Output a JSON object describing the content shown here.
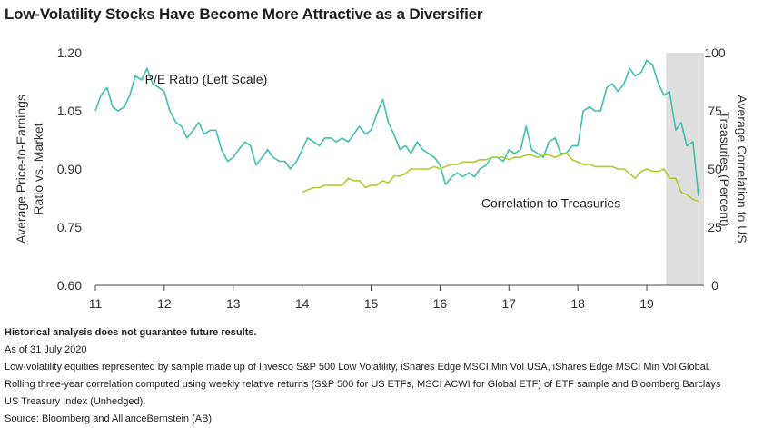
{
  "title": "Low-Volatility Stocks Have Become More Attractive as a Diversifier",
  "chart_data": {
    "type": "line",
    "xlabel": "",
    "ylabel_left": "Average Price-to-Earnings Ratio vs. Market",
    "ylabel_right": "Average Correlation to US Treasuries (Percent)",
    "x_ticks": [
      "11",
      "12",
      "13",
      "14",
      "15",
      "16",
      "17",
      "18",
      "19"
    ],
    "x_tick_values": [
      2011,
      2012,
      2013,
      2014,
      2015,
      2016,
      2017,
      2018,
      2019
    ],
    "xlim": [
      2011,
      2019.83
    ],
    "y_left_ticks": [
      "0.60",
      "0.75",
      "0.90",
      "1.05",
      "1.20"
    ],
    "ylim_left": [
      0.6,
      1.2
    ],
    "y_right_ticks": [
      "0",
      "25",
      "50",
      "75",
      "100"
    ],
    "ylim_right": [
      0,
      100
    ],
    "shaded_region": [
      2019.28,
      2019.83
    ],
    "grid": false,
    "series": [
      {
        "name": "P/E Ratio (Left Scale)",
        "axis": "left",
        "color": "#3fbfae",
        "x": [
          2011.0,
          2011.08,
          2011.17,
          2011.25,
          2011.33,
          2011.42,
          2011.5,
          2011.58,
          2011.67,
          2011.75,
          2011.83,
          2011.92,
          2012.0,
          2012.08,
          2012.17,
          2012.25,
          2012.33,
          2012.42,
          2012.5,
          2012.58,
          2012.67,
          2012.75,
          2012.83,
          2012.92,
          2013.0,
          2013.08,
          2013.17,
          2013.25,
          2013.33,
          2013.42,
          2013.5,
          2013.58,
          2013.67,
          2013.75,
          2013.83,
          2013.92,
          2014.0,
          2014.08,
          2014.17,
          2014.25,
          2014.33,
          2014.42,
          2014.5,
          2014.58,
          2014.67,
          2014.75,
          2014.83,
          2014.92,
          2015.0,
          2015.08,
          2015.17,
          2015.25,
          2015.33,
          2015.42,
          2015.5,
          2015.58,
          2015.67,
          2015.75,
          2015.83,
          2015.92,
          2016.0,
          2016.08,
          2016.17,
          2016.25,
          2016.33,
          2016.42,
          2016.5,
          2016.58,
          2016.67,
          2016.75,
          2016.83,
          2016.92,
          2017.0,
          2017.08,
          2017.17,
          2017.25,
          2017.33,
          2017.42,
          2017.5,
          2017.58,
          2017.67,
          2017.75,
          2017.83,
          2017.92,
          2018.0,
          2018.08,
          2018.17,
          2018.25,
          2018.33,
          2018.42,
          2018.5,
          2018.58,
          2018.67,
          2018.75,
          2018.83,
          2018.92,
          2019.0,
          2019.08,
          2019.17,
          2019.25,
          2019.33,
          2019.42,
          2019.5,
          2019.58,
          2019.67,
          2019.75
        ],
        "y": [
          1.05,
          1.09,
          1.11,
          1.06,
          1.05,
          1.06,
          1.09,
          1.14,
          1.13,
          1.16,
          1.12,
          1.11,
          1.1,
          1.05,
          1.02,
          1.01,
          0.98,
          1.0,
          1.02,
          0.99,
          1.0,
          1.0,
          0.95,
          0.92,
          0.93,
          0.95,
          0.97,
          0.96,
          0.91,
          0.93,
          0.95,
          0.93,
          0.92,
          0.92,
          0.9,
          0.92,
          0.95,
          0.98,
          0.97,
          0.96,
          0.98,
          0.98,
          0.97,
          0.98,
          0.97,
          0.99,
          1.01,
          0.99,
          1.0,
          1.04,
          1.08,
          1.02,
          0.99,
          0.95,
          0.96,
          0.94,
          0.97,
          0.95,
          0.94,
          0.93,
          0.91,
          0.86,
          0.88,
          0.89,
          0.88,
          0.89,
          0.88,
          0.9,
          0.91,
          0.93,
          0.93,
          0.92,
          0.95,
          0.94,
          0.95,
          1.01,
          0.95,
          0.94,
          0.93,
          0.97,
          0.98,
          0.94,
          0.94,
          0.96,
          0.96,
          1.05,
          1.06,
          1.05,
          1.05,
          1.11,
          1.12,
          1.1,
          1.12,
          1.16,
          1.14,
          1.15,
          1.18,
          1.17,
          1.12,
          1.09,
          1.1,
          1.0,
          1.02,
          0.96,
          0.97,
          0.83
        ]
      },
      {
        "name": "Correlation to Treasuries",
        "axis": "right",
        "color": "#b0cb2d",
        "x": [
          2014.0,
          2014.08,
          2014.17,
          2014.25,
          2014.33,
          2014.42,
          2014.5,
          2014.58,
          2014.67,
          2014.75,
          2014.83,
          2014.92,
          2015.0,
          2015.08,
          2015.17,
          2015.25,
          2015.33,
          2015.42,
          2015.5,
          2015.58,
          2015.67,
          2015.75,
          2015.83,
          2015.92,
          2016.0,
          2016.08,
          2016.17,
          2016.25,
          2016.33,
          2016.42,
          2016.5,
          2016.58,
          2016.67,
          2016.75,
          2016.83,
          2016.92,
          2017.0,
          2017.08,
          2017.17,
          2017.25,
          2017.33,
          2017.42,
          2017.5,
          2017.58,
          2017.67,
          2017.75,
          2017.83,
          2017.92,
          2018.0,
          2018.08,
          2018.17,
          2018.25,
          2018.33,
          2018.42,
          2018.5,
          2018.58,
          2018.67,
          2018.75,
          2018.83,
          2018.92,
          2019.0,
          2019.08,
          2019.17,
          2019.25,
          2019.33,
          2019.42,
          2019.5,
          2019.58,
          2019.67,
          2019.75
        ],
        "y": [
          40,
          41,
          42,
          42,
          43,
          43,
          43,
          43,
          46,
          45,
          45,
          42,
          43,
          43,
          45,
          44,
          47,
          47,
          48,
          50,
          50,
          50,
          50,
          51,
          50,
          51,
          52,
          52,
          53,
          53,
          53,
          54,
          54,
          55,
          55,
          55,
          54,
          55,
          55,
          56,
          56,
          55,
          56,
          56,
          55,
          56,
          57,
          54,
          53,
          52,
          52,
          51,
          51,
          51,
          51,
          50,
          50,
          48,
          46,
          49,
          50,
          49,
          49,
          50,
          46,
          46,
          40,
          39,
          37,
          36
        ]
      }
    ],
    "annotations": [
      {
        "text": "P/E Ratio (Left Scale)",
        "x": 2011.72,
        "y_left": 1.12
      },
      {
        "text": "Correlation to Treasuries",
        "x": 2016.6,
        "y_left": 0.8
      }
    ]
  },
  "notes": {
    "disclaimer": "Historical analysis does not guarantee future results.",
    "as_of": "As of 31 July 2020",
    "line1": "Low-volatility equities represented by sample made up of Invesco S&P 500 Low Volatility, iShares Edge MSCI Min Vol USA, iShares Edge MSCI Min Vol Global.",
    "line2": "Rolling three-year correlation computed using weekly relative returns (S&P 500 for US ETFs, MSCI ACWI for Global ETF) of ETF sample and Bloomberg Barclays",
    "line3": "US Treasury Index (Unhedged).",
    "source": "Source: Bloomberg and AllianceBernstein (AB)"
  }
}
